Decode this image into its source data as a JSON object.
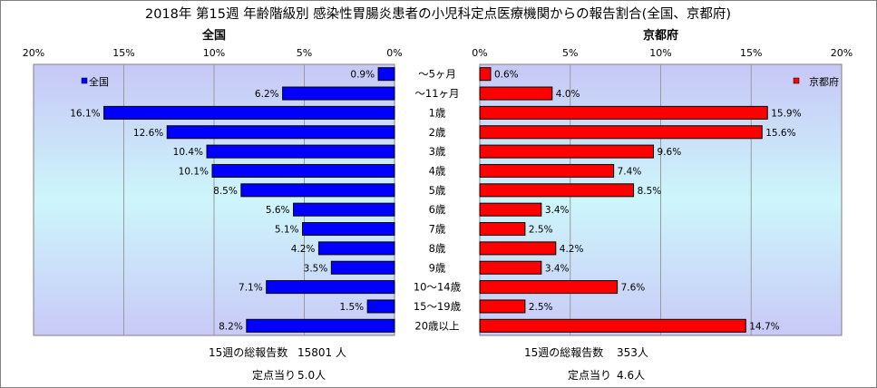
{
  "chart_data": {
    "type": "bar",
    "orientation": "horizontal",
    "layout": "butterfly",
    "title": "2018年 第15週 年齢階級別 感染性胃腸炎患者の小児科定点医療機関からの報告割合(全国、京都府)",
    "categories": [
      "～5ヶ月",
      "～11ヶ月",
      "1歳",
      "2歳",
      "3歳",
      "4歳",
      "5歳",
      "6歳",
      "7歳",
      "8歳",
      "9歳",
      "10～14歳",
      "15～19歳",
      "20歳以上"
    ],
    "xlim": [
      0,
      20
    ],
    "tick_labels": [
      "0%",
      "5%",
      "10%",
      "15%",
      "20%"
    ],
    "grid": true,
    "panels": [
      {
        "name": "全国",
        "legend": "全国",
        "legend_position": "top-left",
        "direction": "left",
        "color": "#0000ff",
        "values": [
          0.9,
          6.2,
          16.1,
          12.6,
          10.4,
          10.1,
          8.5,
          5.6,
          5.1,
          4.2,
          3.5,
          7.1,
          1.5,
          8.2
        ],
        "labels": [
          "0.9%",
          "6.2%",
          "16.1%",
          "12.6%",
          "10.4%",
          "10.1%",
          "8.5%",
          "5.6%",
          "5.1%",
          "4.2%",
          "3.5%",
          "7.1%",
          "1.5%",
          "8.2%"
        ],
        "total_label": "15週の総報告数",
        "total_value": "15801 人",
        "per_site_label": "定点当り",
        "per_site_value": "5.0人"
      },
      {
        "name": "京都府",
        "legend": "京都府",
        "legend_position": "top-right",
        "direction": "right",
        "color": "#ff0000",
        "values": [
          0.6,
          4.0,
          15.9,
          15.6,
          9.6,
          7.4,
          8.5,
          3.4,
          2.5,
          4.2,
          3.4,
          7.6,
          2.5,
          14.7
        ],
        "labels": [
          "0.6%",
          "4.0%",
          "15.9%",
          "15.6%",
          "9.6%",
          "7.4%",
          "8.5%",
          "3.4%",
          "2.5%",
          "4.2%",
          "3.4%",
          "7.6%",
          "2.5%",
          "14.7%"
        ],
        "total_label": "15週の総報告数",
        "total_value": "353人",
        "per_site_label": "定点当り",
        "per_site_value": "4.6人"
      }
    ]
  }
}
